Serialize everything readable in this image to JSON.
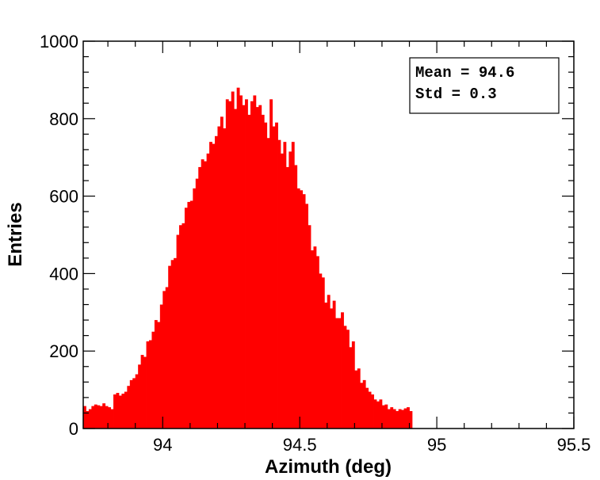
{
  "chart_data": {
    "type": "bar",
    "subtype": "histogram",
    "xlabel": "Azimuth (deg)",
    "ylabel": "Entries",
    "xlim": [
      93.71,
      95.5
    ],
    "ylim": [
      0,
      1000
    ],
    "x_ticks": [
      94,
      94.5,
      95,
      95.5
    ],
    "x_tick_labels": [
      "94",
      "94.5",
      "95",
      "95.5"
    ],
    "y_ticks": [
      0,
      200,
      400,
      600,
      800,
      1000
    ],
    "y_tick_labels": [
      "0",
      "200",
      "400",
      "600",
      "800",
      "1000"
    ],
    "bar_color": "#ff0000",
    "grid": false,
    "stats": [
      "Mean = 94.6",
      "Std = 0.3"
    ],
    "bin_width": 0.01,
    "bin_start": 93.71,
    "values": [
      58,
      45,
      50,
      58,
      62,
      60,
      58,
      65,
      58,
      55,
      50,
      88,
      92,
      85,
      90,
      95,
      110,
      125,
      130,
      140,
      165,
      190,
      185,
      225,
      228,
      250,
      280,
      275,
      320,
      355,
      365,
      420,
      435,
      440,
      500,
      525,
      530,
      570,
      585,
      588,
      620,
      645,
      675,
      695,
      690,
      710,
      740,
      735,
      755,
      780,
      805,
      775,
      850,
      845,
      870,
      825,
      880,
      860,
      835,
      850,
      810,
      845,
      860,
      830,
      835,
      810,
      790,
      750,
      850,
      780,
      790,
      745,
      710,
      740,
      675,
      715,
      740,
      680,
      620,
      615,
      605,
      580,
      525,
      460,
      470,
      445,
      400,
      390,
      325,
      345,
      310,
      330,
      285,
      285,
      300,
      265,
      255,
      210,
      225,
      150,
      155,
      118,
      125,
      105,
      95,
      88,
      75,
      70,
      75,
      60,
      62,
      50,
      55,
      50,
      45,
      50,
      48,
      52,
      55,
      45
    ]
  }
}
